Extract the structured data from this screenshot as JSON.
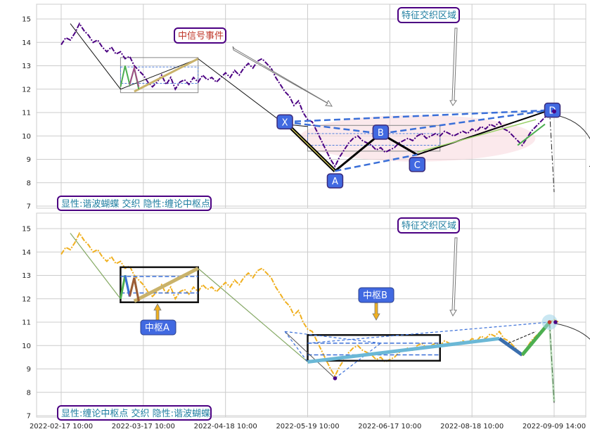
{
  "chart_data": [
    {
      "type": "line",
      "panel": "top",
      "yticks": [
        7,
        8,
        9,
        10,
        11,
        12,
        13,
        14,
        15
      ],
      "ylim": [
        6.85,
        15.6
      ],
      "price_color": "#4b0082",
      "series": [
        {
          "values": [
            [
              0,
              13.9
            ],
            [
              1,
              14.2
            ],
            [
              2,
              14.1
            ],
            [
              3,
              14.4
            ],
            [
              4,
              14.8
            ],
            [
              5,
              14.5
            ],
            [
              6,
              14.3
            ],
            [
              7,
              14.0
            ],
            [
              8,
              14.1
            ],
            [
              9,
              13.8
            ],
            [
              10,
              13.6
            ],
            [
              11,
              13.8
            ],
            [
              12,
              13.5
            ],
            [
              13,
              13.6
            ],
            [
              14,
              13.3
            ],
            [
              15,
              13.4
            ],
            [
              16,
              13.0
            ],
            [
              17,
              12.8
            ],
            [
              18,
              12.6
            ],
            [
              19,
              12.3
            ],
            [
              20,
              12.1
            ],
            [
              21,
              12.3
            ],
            [
              22,
              12.6
            ],
            [
              23,
              12.2
            ],
            [
              24,
              12.5
            ],
            [
              25,
              12.0
            ],
            [
              26,
              12.3
            ],
            [
              27,
              12.4
            ],
            [
              28,
              12.2
            ],
            [
              29,
              12.5
            ],
            [
              30,
              12.3
            ],
            [
              31,
              12.6
            ],
            [
              32,
              12.4
            ],
            [
              33,
              12.5
            ],
            [
              34,
              12.3
            ],
            [
              35,
              12.5
            ],
            [
              36,
              12.7
            ],
            [
              37,
              12.5
            ],
            [
              38,
              12.8
            ],
            [
              39,
              12.6
            ],
            [
              40,
              12.9
            ],
            [
              41,
              13.1
            ],
            [
              42,
              12.9
            ],
            [
              43,
              13.2
            ],
            [
              44,
              13.3
            ],
            [
              45,
              13.1
            ],
            [
              46,
              12.9
            ],
            [
              47,
              12.5
            ],
            [
              48,
              12.2
            ],
            [
              49,
              11.9
            ],
            [
              50,
              11.7
            ],
            [
              51,
              11.3
            ],
            [
              52,
              11.5
            ],
            [
              53,
              11.0
            ],
            [
              54,
              10.7
            ],
            [
              55,
              10.6
            ],
            [
              56,
              10.2
            ],
            [
              57,
              9.8
            ],
            [
              58,
              9.4
            ],
            [
              59,
              9.0
            ],
            [
              60,
              8.7
            ],
            [
              61,
              9.1
            ],
            [
              62,
              9.4
            ],
            [
              63,
              9.7
            ],
            [
              64,
              9.9
            ],
            [
              65,
              10.0
            ],
            [
              66,
              9.8
            ],
            [
              67,
              9.7
            ],
            [
              68,
              9.6
            ],
            [
              69,
              9.4
            ],
            [
              70,
              9.5
            ],
            [
              71,
              9.3
            ],
            [
              72,
              9.4
            ],
            [
              73,
              9.5
            ],
            [
              74,
              9.7
            ],
            [
              75,
              9.8
            ],
            [
              76,
              9.9
            ],
            [
              77,
              9.8
            ],
            [
              78,
              10.0
            ],
            [
              79,
              10.1
            ],
            [
              80,
              9.9
            ],
            [
              81,
              10.0
            ],
            [
              82,
              10.1
            ],
            [
              83,
              10.0
            ],
            [
              84,
              10.2
            ],
            [
              85,
              10.1
            ],
            [
              86,
              10.0
            ],
            [
              87,
              10.1
            ],
            [
              88,
              10.2
            ],
            [
              89,
              10.1
            ],
            [
              90,
              10.3
            ],
            [
              91,
              10.2
            ],
            [
              92,
              10.4
            ],
            [
              93,
              10.3
            ],
            [
              94,
              10.5
            ],
            [
              95,
              10.4
            ],
            [
              96,
              10.6
            ],
            [
              97,
              10.3
            ],
            [
              98,
              10.2
            ],
            [
              99,
              10.0
            ],
            [
              100,
              9.8
            ],
            [
              101,
              9.6
            ],
            [
              102,
              9.9
            ],
            [
              103,
              10.2
            ],
            [
              104,
              10.4
            ],
            [
              105,
              10.6
            ],
            [
              106,
              10.8
            ],
            [
              107,
              11.0
            ],
            [
              108,
              11.1
            ],
            [
              109,
              11.0
            ]
          ]
        }
      ],
      "legend_text": "显性:谐波蝴蝶 交织 隐性:缠论中枢点",
      "points": [
        {
          "label": "X",
          "x": 49,
          "y": 10.6
        },
        {
          "label": "A",
          "x": 60,
          "y": 8.5
        },
        {
          "label": "B",
          "x": 70,
          "y": 10.1
        },
        {
          "label": "C",
          "x": 78,
          "y": 9.2
        },
        {
          "label": "D",
          "x": 107,
          "y": 11.1
        }
      ],
      "annotations": [
        {
          "text": "中信号事件"
        },
        {
          "text": "特征交织区域"
        }
      ]
    },
    {
      "type": "line",
      "panel": "bottom",
      "yticks": [
        7,
        8,
        9,
        10,
        11,
        12,
        13,
        14,
        15
      ],
      "ylim": [
        6.85,
        15.6
      ],
      "price_color": "#f0b020",
      "series": [
        {
          "values": [
            [
              0,
              13.9
            ],
            [
              1,
              14.2
            ],
            [
              2,
              14.1
            ],
            [
              3,
              14.4
            ],
            [
              4,
              14.8
            ],
            [
              5,
              14.5
            ],
            [
              6,
              14.3
            ],
            [
              7,
              14.0
            ],
            [
              8,
              14.1
            ],
            [
              9,
              13.8
            ],
            [
              10,
              13.6
            ],
            [
              11,
              13.8
            ],
            [
              12,
              13.5
            ],
            [
              13,
              13.6
            ],
            [
              14,
              13.3
            ],
            [
              15,
              13.4
            ],
            [
              16,
              13.0
            ],
            [
              17,
              12.8
            ],
            [
              18,
              12.6
            ],
            [
              19,
              12.3
            ],
            [
              20,
              12.1
            ],
            [
              21,
              12.3
            ],
            [
              22,
              12.6
            ],
            [
              23,
              12.2
            ],
            [
              24,
              12.5
            ],
            [
              25,
              12.0
            ],
            [
              26,
              12.3
            ],
            [
              27,
              12.4
            ],
            [
              28,
              12.2
            ],
            [
              29,
              12.5
            ],
            [
              30,
              12.3
            ],
            [
              31,
              12.6
            ],
            [
              32,
              12.4
            ],
            [
              33,
              12.5
            ],
            [
              34,
              12.3
            ],
            [
              35,
              12.5
            ],
            [
              36,
              12.7
            ],
            [
              37,
              12.5
            ],
            [
              38,
              12.8
            ],
            [
              39,
              12.6
            ],
            [
              40,
              12.9
            ],
            [
              41,
              13.1
            ],
            [
              42,
              12.9
            ],
            [
              43,
              13.2
            ],
            [
              44,
              13.3
            ],
            [
              45,
              13.1
            ],
            [
              46,
              12.9
            ],
            [
              47,
              12.5
            ],
            [
              48,
              12.2
            ],
            [
              49,
              11.9
            ],
            [
              50,
              11.7
            ],
            [
              51,
              11.3
            ],
            [
              52,
              11.5
            ],
            [
              53,
              11.0
            ],
            [
              54,
              10.7
            ],
            [
              55,
              10.6
            ],
            [
              56,
              10.2
            ],
            [
              57,
              9.8
            ],
            [
              58,
              9.4
            ],
            [
              59,
              9.0
            ],
            [
              60,
              8.7
            ],
            [
              61,
              9.1
            ],
            [
              62,
              9.4
            ],
            [
              63,
              9.7
            ],
            [
              64,
              9.9
            ],
            [
              65,
              10.0
            ],
            [
              66,
              9.8
            ],
            [
              67,
              9.7
            ],
            [
              68,
              9.6
            ],
            [
              69,
              9.4
            ],
            [
              70,
              9.5
            ],
            [
              71,
              9.3
            ],
            [
              72,
              9.4
            ],
            [
              73,
              9.5
            ],
            [
              74,
              9.7
            ],
            [
              75,
              9.8
            ],
            [
              76,
              9.9
            ],
            [
              77,
              9.8
            ],
            [
              78,
              10.0
            ],
            [
              79,
              10.1
            ],
            [
              80,
              9.9
            ],
            [
              81,
              10.0
            ],
            [
              82,
              10.1
            ],
            [
              83,
              10.0
            ],
            [
              84,
              10.2
            ],
            [
              85,
              10.1
            ],
            [
              86,
              10.0
            ],
            [
              87,
              10.1
            ],
            [
              88,
              10.2
            ],
            [
              89,
              10.1
            ],
            [
              90,
              10.3
            ],
            [
              91,
              10.2
            ],
            [
              92,
              10.4
            ],
            [
              93,
              10.3
            ],
            [
              94,
              10.5
            ],
            [
              95,
              10.4
            ],
            [
              96,
              10.6
            ],
            [
              97,
              10.3
            ],
            [
              98,
              10.2
            ],
            [
              99,
              10.0
            ],
            [
              100,
              9.8
            ],
            [
              101,
              9.6
            ],
            [
              102,
              9.9
            ],
            [
              103,
              10.2
            ],
            [
              104,
              10.4
            ],
            [
              105,
              10.6
            ],
            [
              106,
              10.8
            ],
            [
              107,
              11.0
            ],
            [
              108,
              11.1
            ],
            [
              109,
              11.0
            ]
          ]
        }
      ],
      "legend_text": "显性:缠论中枢点 交织 隐性:谐波蝴蝶",
      "zhongshu": [
        {
          "label": "中枢A",
          "x0": 13,
          "x1": 30,
          "ylo": 11.85,
          "yhi": 13.35,
          "inner_lo": 12.25,
          "inner_hi": 12.95
        },
        {
          "label": "中枢B",
          "x0": 54,
          "x1": 83,
          "ylo": 9.35,
          "yhi": 10.45,
          "inner_lo": 9.6,
          "inner_hi": 10.1
        }
      ],
      "annotations": [
        {
          "text": "特征交织区域"
        }
      ]
    }
  ],
  "x_axis": {
    "grid": true,
    "ticks": [
      {
        "x": 0,
        "label": "2022-02-17 10:00"
      },
      {
        "x": 18,
        "label": "2022-03-17 10:00"
      },
      {
        "x": 36,
        "label": "2022-04-18 10:00"
      },
      {
        "x": 54,
        "label": "2022-05-19 10:00"
      },
      {
        "x": 72,
        "label": "2022-06-17 10:00"
      },
      {
        "x": 90,
        "label": "2022-08-18 10:00"
      },
      {
        "x": 108,
        "label": "2022-09-09 14:00"
      }
    ]
  },
  "colors": {
    "grid": "#cccccc",
    "accent_blue": "#3a6fd8",
    "label_box": "#4169e1",
    "annot_border": "#4b0082",
    "annot_red": "#c0392b",
    "teal": "#1f7ea1",
    "green": "#4caf50",
    "tan": "#c9b26a"
  }
}
